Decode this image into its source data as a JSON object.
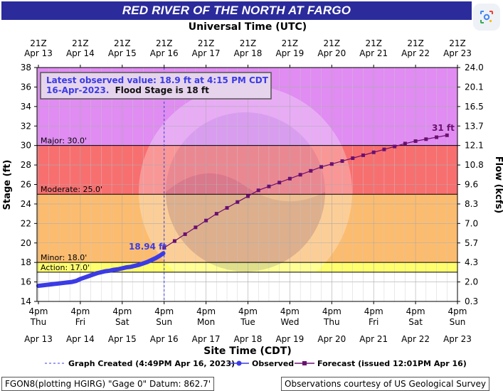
{
  "title": "RED RIVER OF THE NORTH AT FARGO",
  "top_axis_title": "Universal Time (UTC)",
  "bottom_axis_title": "Site Time (CDT)",
  "colors": {
    "title_bg": "#2b2b9c",
    "major": "#e08cf2",
    "moderate": "#f86f6f",
    "minor": "#fcbc6f",
    "action": "#ffff6e",
    "observed": "#3b3be6",
    "forecast": "#6b1070",
    "annotation_text": "#3b3be6",
    "forecast_peak_text": "#6b1070"
  },
  "chart_data": {
    "type": "line",
    "xlabel": "Site Time (CDT)",
    "ylabel": "Stage (ft)",
    "y2label": "Flow (kcfs)",
    "ylim": [
      14,
      38
    ],
    "yticks": [
      14,
      16,
      18,
      20,
      22,
      24,
      26,
      28,
      30,
      32,
      34,
      36,
      38
    ],
    "y2_ticks": [
      {
        "stage": 14,
        "label": "0.3"
      },
      {
        "stage": 16,
        "label": "2.0"
      },
      {
        "stage": 18,
        "label": "4.3"
      },
      {
        "stage": 20,
        "label": "5.7"
      },
      {
        "stage": 22,
        "label": "7.0"
      },
      {
        "stage": 24,
        "label": "8.3"
      },
      {
        "stage": 26,
        "label": "9.6"
      },
      {
        "stage": 28,
        "label": "10.8"
      },
      {
        "stage": 30,
        "label": "12.1"
      },
      {
        "stage": 32,
        "label": "13.7"
      },
      {
        "stage": 34,
        "label": "16.5"
      },
      {
        "stage": 36,
        "label": "20.1"
      },
      {
        "stage": 38,
        "label": "24.0"
      }
    ],
    "x_ticks_bottom": [
      {
        "day": "4pm",
        "weekday": "Thu",
        "date": "Apr 13"
      },
      {
        "day": "4pm",
        "weekday": "Fri",
        "date": "Apr 14"
      },
      {
        "day": "4pm",
        "weekday": "Sat",
        "date": "Apr 15"
      },
      {
        "day": "4pm",
        "weekday": "Sun",
        "date": "Apr 16"
      },
      {
        "day": "4pm",
        "weekday": "Mon",
        "date": "Apr 17"
      },
      {
        "day": "4pm",
        "weekday": "Tue",
        "date": "Apr 18"
      },
      {
        "day": "4pm",
        "weekday": "Wed",
        "date": "Apr 19"
      },
      {
        "day": "4pm",
        "weekday": "Thu",
        "date": "Apr 20"
      },
      {
        "day": "4pm",
        "weekday": "Fri",
        "date": "Apr 21"
      },
      {
        "day": "4pm",
        "weekday": "Sat",
        "date": "Apr 22"
      },
      {
        "day": "4pm",
        "weekday": "Sun",
        "date": "Apr 23"
      }
    ],
    "x_ticks_top": [
      {
        "time": "21Z",
        "date": "Apr 13"
      },
      {
        "time": "21Z",
        "date": "Apr 14"
      },
      {
        "time": "21Z",
        "date": "Apr 15"
      },
      {
        "time": "21Z",
        "date": "Apr 16"
      },
      {
        "time": "21Z",
        "date": "Apr 17"
      },
      {
        "time": "21Z",
        "date": "Apr 18"
      },
      {
        "time": "21Z",
        "date": "Apr 19"
      },
      {
        "time": "21Z",
        "date": "Apr 20"
      },
      {
        "time": "21Z",
        "date": "Apr 21"
      },
      {
        "time": "21Z",
        "date": "Apr 22"
      },
      {
        "time": "21Z",
        "date": "Apr 23"
      }
    ],
    "flood_categories": [
      {
        "name": "Action",
        "label": "Action: 17.0'",
        "stage": 17.0,
        "upper": 18.0,
        "color": "#ffff6e"
      },
      {
        "name": "Minor",
        "label": "Minor: 18.0'",
        "stage": 18.0,
        "upper": 25.0,
        "color": "#fcbc6f"
      },
      {
        "name": "Moderate",
        "label": "Moderate: 25.0'",
        "stage": 25.0,
        "upper": 30.0,
        "color": "#f86f6f"
      },
      {
        "name": "Major",
        "label": "Major: 30.0'",
        "stage": 30.0,
        "upper": 38.0,
        "color": "#e08cf2"
      }
    ],
    "graph_created_day": 3.0,
    "series": [
      {
        "name": "Observed",
        "x_days": [
          0.0,
          0.1,
          0.2,
          0.3,
          0.4,
          0.5,
          0.6,
          0.7,
          0.8,
          0.9,
          1.0,
          1.1,
          1.2,
          1.3,
          1.4,
          1.5,
          1.6,
          1.7,
          1.8,
          1.9,
          2.0,
          2.1,
          2.2,
          2.3,
          2.4,
          2.5,
          2.6,
          2.7,
          2.8,
          2.9,
          2.98
        ],
        "values": [
          15.6,
          15.65,
          15.7,
          15.75,
          15.8,
          15.85,
          15.9,
          15.95,
          16.0,
          16.1,
          16.3,
          16.45,
          16.6,
          16.75,
          16.9,
          17.0,
          17.1,
          17.15,
          17.25,
          17.3,
          17.4,
          17.5,
          17.55,
          17.65,
          17.75,
          17.9,
          18.05,
          18.25,
          18.45,
          18.7,
          18.94
        ]
      },
      {
        "name": "Forecast",
        "x_days": [
          3.0,
          3.25,
          3.5,
          3.75,
          4.0,
          4.25,
          4.5,
          4.75,
          5.0,
          5.25,
          5.5,
          5.75,
          6.0,
          6.25,
          6.5,
          6.75,
          7.0,
          7.25,
          7.5,
          7.75,
          8.0,
          8.25,
          8.5,
          8.75,
          9.0,
          9.25,
          9.5,
          9.75
        ],
        "values": [
          19.5,
          20.2,
          20.9,
          21.6,
          22.3,
          23.0,
          23.6,
          24.2,
          24.8,
          25.4,
          25.8,
          26.2,
          26.6,
          27.0,
          27.4,
          27.8,
          28.1,
          28.4,
          28.7,
          29.0,
          29.3,
          29.6,
          29.9,
          30.2,
          30.45,
          30.65,
          30.85,
          31.05
        ]
      }
    ],
    "annotations": {
      "observed_label": "18.94 ft",
      "forecast_peak_label": "31 ft",
      "latest_line1": "Latest observed value: 18.9 ft at 4:15 PM CDT",
      "latest_line2_date": "16-Apr-2023.",
      "latest_line2_flood": "Flood Stage is 18 ft"
    }
  },
  "legend": {
    "graph_created": "Graph Created (4:49PM Apr 16, 2023)",
    "observed": "Observed",
    "forecast": "Forecast (issued 12:01PM Apr 16)"
  },
  "footer": {
    "left": "FGON8(plotting HGIRG) \"Gage 0\" Datum: 862.7'",
    "right": "Observations courtesy of US Geological Survey"
  },
  "icons": {
    "lens": "google-lens-icon"
  }
}
